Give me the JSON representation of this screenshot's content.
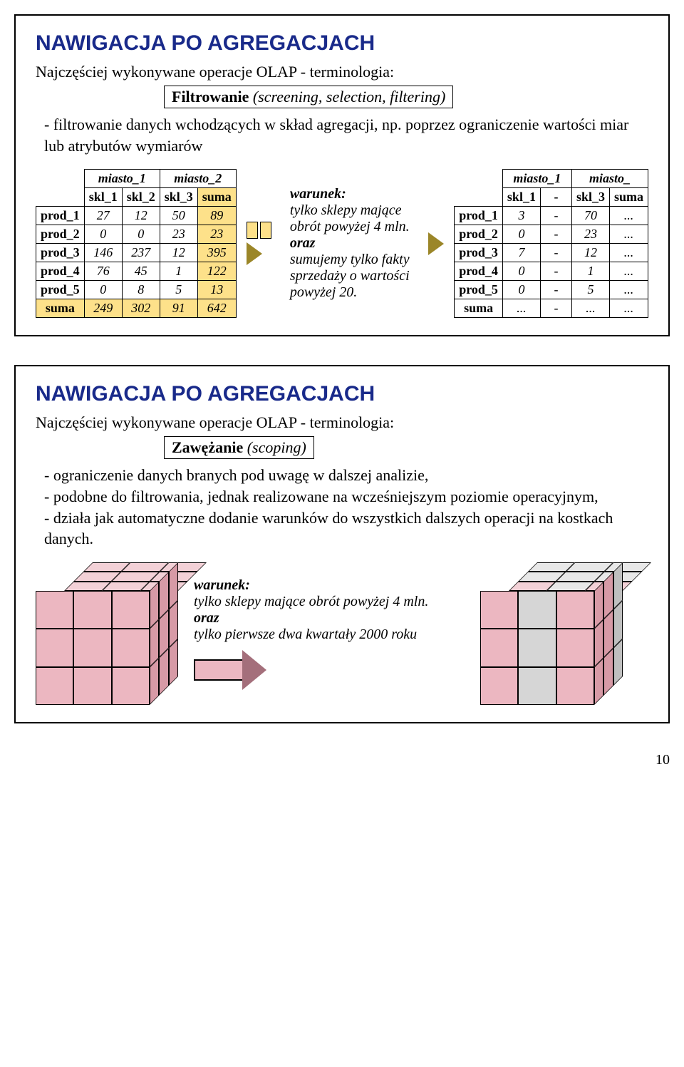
{
  "slide1": {
    "title": "NAWIGACJA PO AGREGACJACH",
    "subtitle": "Najczęściej wykonywane operacje OLAP - terminologia:",
    "operation": "Filtrowanie",
    "operation_note": "(screening, selection, filtering)",
    "bullet1": "- filtrowanie danych wchodzących w skład agregacji, np. poprzez ograniczenie wartości miar lub atrybutów wymiarów",
    "table_left": {
      "group_cols": [
        "miasto_1",
        "miasto_2"
      ],
      "cols": [
        "skl_1",
        "skl_2",
        "skl_3",
        "suma"
      ],
      "rows": [
        {
          "label": "prod_1",
          "vals": [
            "27",
            "12",
            "50",
            "89"
          ]
        },
        {
          "label": "prod_2",
          "vals": [
            "0",
            "0",
            "23",
            "23"
          ]
        },
        {
          "label": "prod_3",
          "vals": [
            "146",
            "237",
            "12",
            "395"
          ]
        },
        {
          "label": "prod_4",
          "vals": [
            "76",
            "45",
            "1",
            "122"
          ]
        },
        {
          "label": "prod_5",
          "vals": [
            "0",
            "8",
            "5",
            "13"
          ]
        },
        {
          "label": "suma",
          "vals": [
            "249",
            "302",
            "91",
            "642"
          ]
        }
      ]
    },
    "condition": {
      "kw1": "warunek:",
      "line1": "tylko sklepy mające obrót powyżej 4 mln.",
      "kw2": "oraz",
      "line2": "sumujemy tylko fakty sprzedaży o wartości powyżej 20."
    },
    "table_right": {
      "group_cols": [
        "miasto_1",
        "miasto_"
      ],
      "cols": [
        "skl_1",
        "-",
        "skl_3",
        "suma"
      ],
      "rows": [
        {
          "label": "prod_1",
          "vals": [
            "3",
            "-",
            "70",
            "..."
          ]
        },
        {
          "label": "prod_2",
          "vals": [
            "0",
            "-",
            "23",
            "..."
          ]
        },
        {
          "label": "prod_3",
          "vals": [
            "7",
            "-",
            "12",
            "..."
          ]
        },
        {
          "label": "prod_4",
          "vals": [
            "0",
            "-",
            "1",
            "..."
          ]
        },
        {
          "label": "prod_5",
          "vals": [
            "0",
            "-",
            "5",
            "..."
          ]
        },
        {
          "label": "suma",
          "vals": [
            "...",
            "-",
            "...",
            "..."
          ]
        }
      ]
    }
  },
  "slide2": {
    "title": "NAWIGACJA PO AGREGACJACH",
    "subtitle": "Najczęściej wykonywane operacje OLAP - terminologia:",
    "operation": "Zawężanie",
    "operation_note": "(scoping)",
    "bullets": [
      "- ograniczenie danych branych pod uwagę w dalszej analizie,",
      "- podobne do filtrowania, jednak realizowane na wcześniejszym poziomie operacyjnym,",
      "- działa jak automatyczne dodanie warunków do wszystkich dalszych operacji na kostkach danych."
    ],
    "condition": {
      "kw1": "warunek:",
      "line1": "tylko sklepy mające obrót powyżej 4 mln.",
      "kw2": "oraz",
      "line2": "tylko pierwsze dwa kwartały 2000 roku"
    }
  },
  "page_number": "10",
  "colors": {
    "title": "#192a8a",
    "highlight": "#fde18a",
    "cube_pink": "#ecb7c1",
    "cube_gray": "#d6d6d6"
  }
}
